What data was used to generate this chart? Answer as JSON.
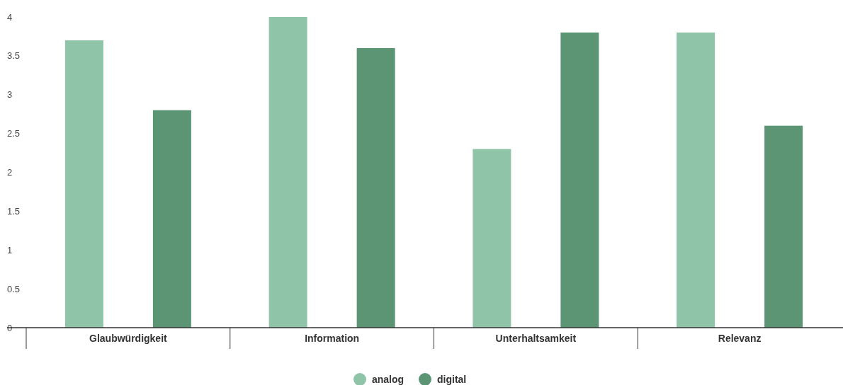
{
  "chart_data": {
    "type": "bar",
    "categories": [
      "Glaubwürdigkeit",
      "Information",
      "Unterhaltsamkeit",
      "Relevanz"
    ],
    "series": [
      {
        "name": "analog",
        "color": "#8fc4a8",
        "values": [
          3.7,
          4.0,
          2.3,
          3.8
        ]
      },
      {
        "name": "digital",
        "color": "#5b9574",
        "values": [
          2.8,
          3.6,
          3.8,
          2.6
        ]
      }
    ],
    "ylim": [
      0,
      4
    ],
    "yticks": [
      0,
      0.5,
      1,
      1.5,
      2,
      2.5,
      3,
      3.5,
      4
    ],
    "grid": false,
    "legend": "bottom"
  }
}
